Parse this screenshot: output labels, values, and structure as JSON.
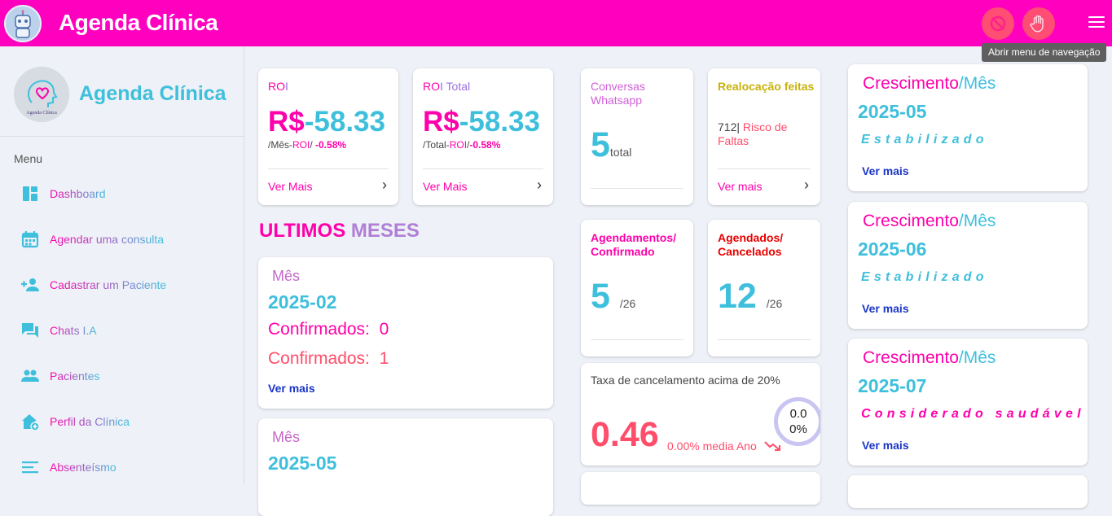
{
  "app": {
    "title": "Agenda Clínica",
    "tooltip": "Abrir menu de navegação"
  },
  "sidebar": {
    "title": "Agenda Clínica",
    "menu_label": "Menu",
    "items": [
      {
        "label": "Dashboard",
        "icon": "dashboard-icon"
      },
      {
        "label": "Agendar uma consulta",
        "icon": "calendar-icon"
      },
      {
        "label": "Cadastrar um Paciente",
        "icon": "add-person-icon"
      },
      {
        "label": "Chats I.A",
        "icon": "chat-icon"
      },
      {
        "label": "Pacientes",
        "icon": "people-icon"
      },
      {
        "label": "Perfil da Clínica",
        "icon": "clinic-home-icon"
      },
      {
        "label": "Absenteísmo",
        "icon": "list-lines-icon"
      }
    ]
  },
  "roi": {
    "label_a": "RO",
    "label_b": "I",
    "currency": "R$",
    "value": "-58.33",
    "sub_prefix": "/Mês-",
    "sub_roi": "ROI",
    "sub_sep": "/ ",
    "sub_value": "-0.58%",
    "link": "Ver Mais"
  },
  "roi_total": {
    "label_a": "RO",
    "label_b": "I Total",
    "currency": "R$",
    "value": "-58.33",
    "sub_prefix": "/Total-",
    "sub_roi": "ROI",
    "sub_sep": "/",
    "sub_value": "-0.58%",
    "link": "Ver Mais"
  },
  "section": {
    "title_a": "ULTIMOS",
    "title_b": "MESES"
  },
  "months": [
    {
      "label": "Mês",
      "date": "2025-02",
      "confirmed_label": "Confirmados:",
      "confirmed": "0",
      "cancelled_label": "Confirmados:",
      "cancelled": "1",
      "link": "Ver mais"
    },
    {
      "label": "Mês",
      "date": "2025-05"
    }
  ],
  "conversas": {
    "label": "Conversas Whatsapp",
    "value": "5",
    "unit": "total"
  },
  "realocacao": {
    "label": "Realocação feitas",
    "count": "712|",
    "risk": "Risco de Faltas",
    "link": "Ver mais"
  },
  "agendamentos": {
    "label": "Agendamentos/ Confirmado",
    "value": "5",
    "total": "/26"
  },
  "agendados": {
    "label": "Agendados/ Cancelados",
    "value": "12",
    "total": "/26"
  },
  "taxa": {
    "label": "Taxa de cancelamento acima de 20%",
    "value": "0.46",
    "sub": "0.00% media Ano",
    "ring_line1": "0.0",
    "ring_line2": "0%"
  },
  "crescimento": [
    {
      "title_a": "Crescimento",
      "title_b": "/Mês",
      "date": "2025-05",
      "status": "Estabilizado",
      "status_color": "#3ebfdc",
      "link": "Ver mais"
    },
    {
      "title_a": "Crescimento",
      "title_b": "/Mês",
      "date": "2025-06",
      "status": "Estabilizado",
      "status_color": "#3ebfdc",
      "link": "Ver mais"
    },
    {
      "title_a": "Crescimento",
      "title_b": "/Mês",
      "date": "2025-07",
      "status": "Considerado saudável",
      "status_color": "#ff00aa",
      "link": "Ver mais"
    }
  ],
  "colors": {
    "brand": "#ff00bf",
    "accent_cyan": "#3ebfdc",
    "accent_pink": "#ff00aa",
    "danger": "#ff4d6a",
    "link_blue": "#1a35c6"
  }
}
